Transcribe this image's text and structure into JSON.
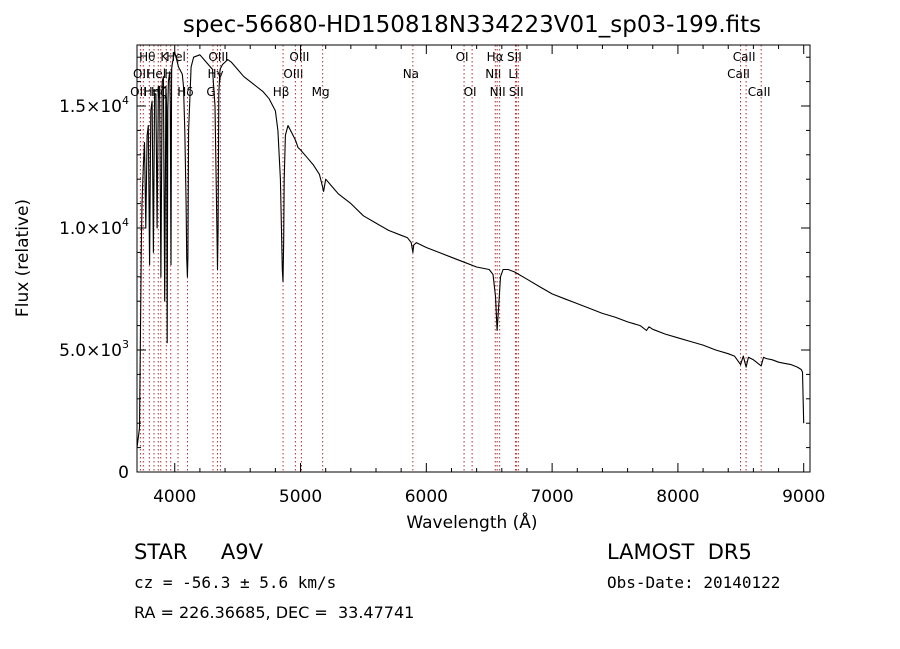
{
  "chart_data": {
    "type": "line",
    "title": "spec-56680-HD150818N334223V01_sp03-199.fits",
    "xlabel": "Wavelength (Å)",
    "ylabel": "Flux (relative)",
    "xlim": [
      3700,
      9050
    ],
    "ylim": [
      0,
      17500
    ],
    "xticks": [
      4000,
      5000,
      6000,
      7000,
      8000,
      9000
    ],
    "xtick_labels": [
      "4000",
      "5000",
      "6000",
      "7000",
      "8000",
      "9000"
    ],
    "yticks": [
      0,
      5000,
      10000,
      15000
    ],
    "ytick_labels": [
      {
        "mant": "0",
        "exp": ""
      },
      {
        "mant": "5.0×10",
        "exp": "3"
      },
      {
        "mant": "1.0×10",
        "exp": "4"
      },
      {
        "mant": "1.5×10",
        "exp": "4"
      }
    ],
    "grid": false,
    "series": [
      {
        "x": [
          3700,
          3720,
          3735,
          3740,
          3750,
          3760,
          3770,
          3780,
          3790,
          3800,
          3810,
          3820,
          3830,
          3840,
          3850,
          3860,
          3870,
          3880,
          3890,
          3900,
          3910,
          3920,
          3930,
          3935,
          3940,
          3945,
          3950,
          3960,
          3965,
          3970,
          3975,
          3980,
          3990,
          4000,
          4010,
          4020,
          4030,
          4040,
          4050,
          4060,
          4070,
          4080,
          4090,
          4095,
          4101,
          4105,
          4110,
          4130,
          4150,
          4200,
          4250,
          4300,
          4320,
          4335,
          4340,
          4345,
          4350,
          4360,
          4380,
          4400,
          4420,
          4450,
          4500,
          4550,
          4600,
          4650,
          4700,
          4750,
          4800,
          4820,
          4840,
          4850,
          4855,
          4861,
          4866,
          4870,
          4880,
          4900,
          4920,
          4940,
          4960,
          4980,
          5000,
          5050,
          5100,
          5150,
          5170,
          5183,
          5200,
          5250,
          5300,
          5400,
          5500,
          5600,
          5700,
          5800,
          5850,
          5880,
          5893,
          5900,
          5920,
          6000,
          6100,
          6200,
          6300,
          6400,
          6500,
          6530,
          6550,
          6563,
          6575,
          6590,
          6610,
          6650,
          6700,
          6800,
          6900,
          7000,
          7100,
          7200,
          7300,
          7400,
          7500,
          7600,
          7700,
          7750,
          7770,
          7800,
          7900,
          8000,
          8100,
          8200,
          8300,
          8400,
          8450,
          8498,
          8520,
          8542,
          8560,
          8600,
          8662,
          8680,
          8700,
          8750,
          8800,
          8850,
          8900,
          8950,
          8980,
          8990,
          9000
        ],
        "y": [
          1000,
          1800,
          9500,
          11000,
          12500,
          13500,
          10000,
          13800,
          14200,
          8500,
          14800,
          15200,
          9000,
          15500,
          15500,
          10000,
          15800,
          15800,
          8000,
          16000,
          16200,
          7000,
          15800,
          15000,
          5300,
          14800,
          16000,
          16400,
          15000,
          8500,
          16500,
          16700,
          17000,
          17200,
          17000,
          16800,
          16600,
          16500,
          16400,
          16300,
          15800,
          14000,
          11000,
          8800,
          8000,
          8800,
          14000,
          16600,
          17000,
          17100,
          16800,
          16500,
          15000,
          10000,
          8300,
          10000,
          15500,
          16500,
          16700,
          16800,
          16900,
          16800,
          16500,
          16200,
          16000,
          15800,
          15600,
          15300,
          14800,
          14000,
          12000,
          9500,
          8300,
          7800,
          9500,
          12000,
          13800,
          14200,
          14000,
          13800,
          13600,
          13300,
          13200,
          12900,
          12600,
          12200,
          11800,
          11500,
          12000,
          11700,
          11400,
          11000,
          10500,
          10200,
          9900,
          9700,
          9600,
          9400,
          9000,
          9300,
          9400,
          9200,
          9000,
          8800,
          8600,
          8400,
          8300,
          8100,
          7200,
          5800,
          6800,
          8000,
          8300,
          8300,
          8200,
          7900,
          7600,
          7300,
          7100,
          6900,
          6700,
          6500,
          6350,
          6150,
          6000,
          5800,
          5950,
          5850,
          5650,
          5500,
          5350,
          5200,
          5000,
          4850,
          4750,
          4400,
          4750,
          4300,
          4700,
          4600,
          4350,
          4700,
          4650,
          4600,
          4500,
          4450,
          4400,
          4300,
          4200,
          4100,
          2000
        ]
      }
    ],
    "lines": [
      {
        "x": 3727,
        "row": 3,
        "label": "OII"
      },
      {
        "x": 3750,
        "row": 2,
        "label": "OII"
      },
      {
        "x": 3798,
        "row": 1,
        "label": "Hθ"
      },
      {
        "x": 3835,
        "row": 3,
        "label": "Hη"
      },
      {
        "x": 3869,
        "row": 2,
        "label": "Hel"
      },
      {
        "x": 3889,
        "row": 3,
        "label": "Hζ"
      },
      {
        "x": 3933,
        "row": 1,
        "label": "K"
      },
      {
        "x": 3968,
        "row": 2,
        "label": "H"
      },
      {
        "x": 4026,
        "row": 1,
        "label": "Hel"
      },
      {
        "x": 4101,
        "row": 3,
        "label": "Hδ"
      },
      {
        "x": 4304,
        "row": 3,
        "label": "G"
      },
      {
        "x": 4340,
        "row": 2,
        "label": "Hγ"
      },
      {
        "x": 4363,
        "row": 1,
        "label": "OIII"
      },
      {
        "x": 4861,
        "row": 3,
        "label": "Hβ"
      },
      {
        "x": 4959,
        "row": 2,
        "label": "OIII"
      },
      {
        "x": 5007,
        "row": 1,
        "label": "OIII"
      },
      {
        "x": 5176,
        "row": 3,
        "label": "Mg"
      },
      {
        "x": 5893,
        "row": 2,
        "label": "Na"
      },
      {
        "x": 6300,
        "row": 1,
        "label": "OI"
      },
      {
        "x": 6364,
        "row": 3,
        "label": "OI"
      },
      {
        "x": 6548,
        "row": 2,
        "label": "NII"
      },
      {
        "x": 6563,
        "row": 1,
        "label": "Hα"
      },
      {
        "x": 6583,
        "row": 3,
        "label": "NII"
      },
      {
        "x": 6708,
        "row": 2,
        "label": "Li"
      },
      {
        "x": 6716,
        "row": 1,
        "label": "SII"
      },
      {
        "x": 6731,
        "row": 3,
        "label": "SII"
      },
      {
        "x": 8498,
        "row": 2,
        "label": "CaII"
      },
      {
        "x": 8542,
        "row": 1,
        "label": "CaII"
      },
      {
        "x": 8662,
        "row": 3,
        "label": "CaII"
      }
    ]
  },
  "info": {
    "star_class": "STAR     A9V",
    "survey": "LAMOST  DR5",
    "cz": "cz = -56.3 ± 5.6 km/s",
    "obs_date": "Obs-Date: 20140122",
    "radec": "RA = 226.36685, DEC =  33.47741"
  },
  "colors": {
    "spectrum": "#000000",
    "line_markers": "#b03030",
    "background": "#ffffff"
  }
}
